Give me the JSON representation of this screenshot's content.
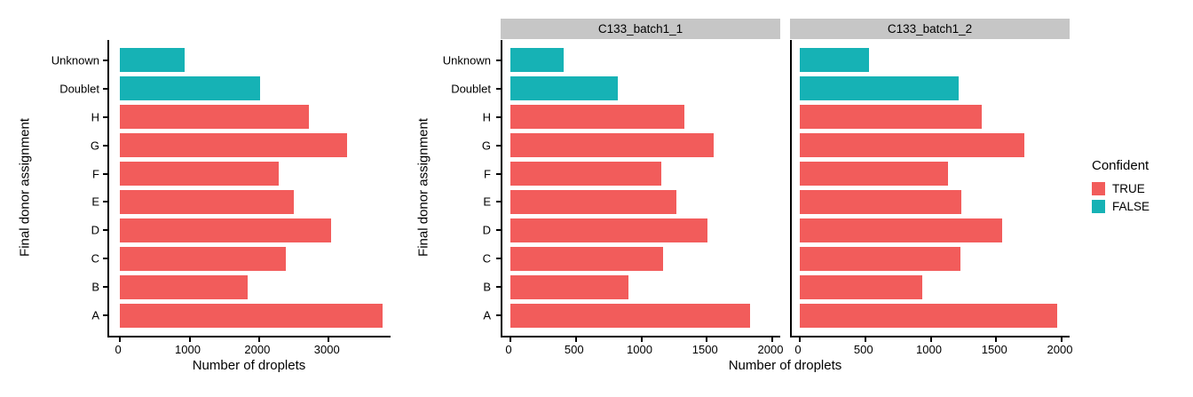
{
  "colors": {
    "confident_true": "#F25C5B",
    "confident_false": "#16B2B5",
    "strip_bg": "#C6C6C6",
    "strip_text": "#000000",
    "axis_line": "#000000",
    "text": "#000000",
    "background": "#FFFFFF"
  },
  "legend": {
    "title": "Confident",
    "items": [
      {
        "label": "TRUE",
        "color": "#F25C5B"
      },
      {
        "label": "FALSE",
        "color": "#16B2B5"
      }
    ]
  },
  "shared": {
    "x_axis_title": "Number of droplets",
    "y_axis_title": "Final donor assignment",
    "categories_top_to_bottom": [
      "Unknown",
      "Doublet",
      "H",
      "G",
      "F",
      "E",
      "D",
      "C",
      "B",
      "A"
    ],
    "confident_by_category": {
      "Unknown": false,
      "Doublet": false,
      "H": true,
      "G": true,
      "F": true,
      "E": true,
      "D": true,
      "C": true,
      "B": true,
      "A": true
    }
  },
  "chart_data": [
    {
      "type": "bar",
      "orientation": "horizontal",
      "panel_title": "",
      "categories": [
        "Unknown",
        "Doublet",
        "H",
        "G",
        "F",
        "E",
        "D",
        "C",
        "B",
        "A"
      ],
      "values": [
        930,
        2020,
        2710,
        3270,
        2280,
        2505,
        3040,
        2390,
        1830,
        3780
      ],
      "x_ticks": [
        0,
        1000,
        2000,
        3000
      ],
      "xlim": [
        -155,
        3890
      ],
      "grid": false,
      "show_y_ticks": true
    },
    {
      "type": "bar",
      "orientation": "horizontal",
      "panel_title": "C133_batch1_1",
      "categories": [
        "Unknown",
        "Doublet",
        "H",
        "G",
        "F",
        "E",
        "D",
        "C",
        "B",
        "A"
      ],
      "values": [
        405,
        820,
        1330,
        1555,
        1150,
        1270,
        1505,
        1165,
        905,
        1830
      ],
      "x_ticks": [
        0,
        500,
        1000,
        1500,
        2000
      ],
      "xlim": [
        -61,
        2061
      ],
      "grid": false,
      "show_y_ticks": true
    },
    {
      "type": "bar",
      "orientation": "horizontal",
      "panel_title": "C133_batch1_2",
      "categories": [
        "Unknown",
        "Doublet",
        "H",
        "G",
        "F",
        "E",
        "D",
        "C",
        "B",
        "A"
      ],
      "values": [
        530,
        1215,
        1390,
        1715,
        1130,
        1235,
        1545,
        1230,
        935,
        1965
      ],
      "x_ticks": [
        0,
        500,
        1000,
        1500,
        2000
      ],
      "xlim": [
        -61,
        2061
      ],
      "grid": false,
      "show_y_ticks": false
    }
  ]
}
